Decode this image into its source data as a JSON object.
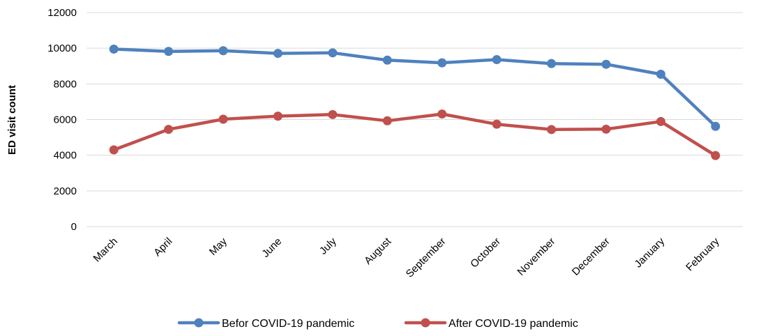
{
  "chart_data": {
    "type": "line",
    "title": "",
    "xlabel": "",
    "ylabel": "ED visit count",
    "ylim": [
      0,
      12000
    ],
    "yticks": [
      0,
      2000,
      4000,
      6000,
      8000,
      10000,
      12000
    ],
    "grid": true,
    "legend_position": "bottom",
    "categories": [
      "March",
      "April",
      "May",
      "June",
      "July",
      "August",
      "September",
      "October",
      "November",
      "December",
      "January",
      "February"
    ],
    "series": [
      {
        "name": "Befor COVID-19 pandemic",
        "color": "#4f81bd",
        "values": [
          9950,
          9820,
          9860,
          9710,
          9740,
          9330,
          9180,
          9360,
          9140,
          9100,
          8540,
          5620
        ]
      },
      {
        "name": "After COVID-19 pandemic",
        "color": "#c0504d",
        "values": [
          4300,
          5450,
          6020,
          6190,
          6280,
          5930,
          6310,
          5740,
          5440,
          5460,
          5890,
          3980
        ]
      }
    ]
  }
}
